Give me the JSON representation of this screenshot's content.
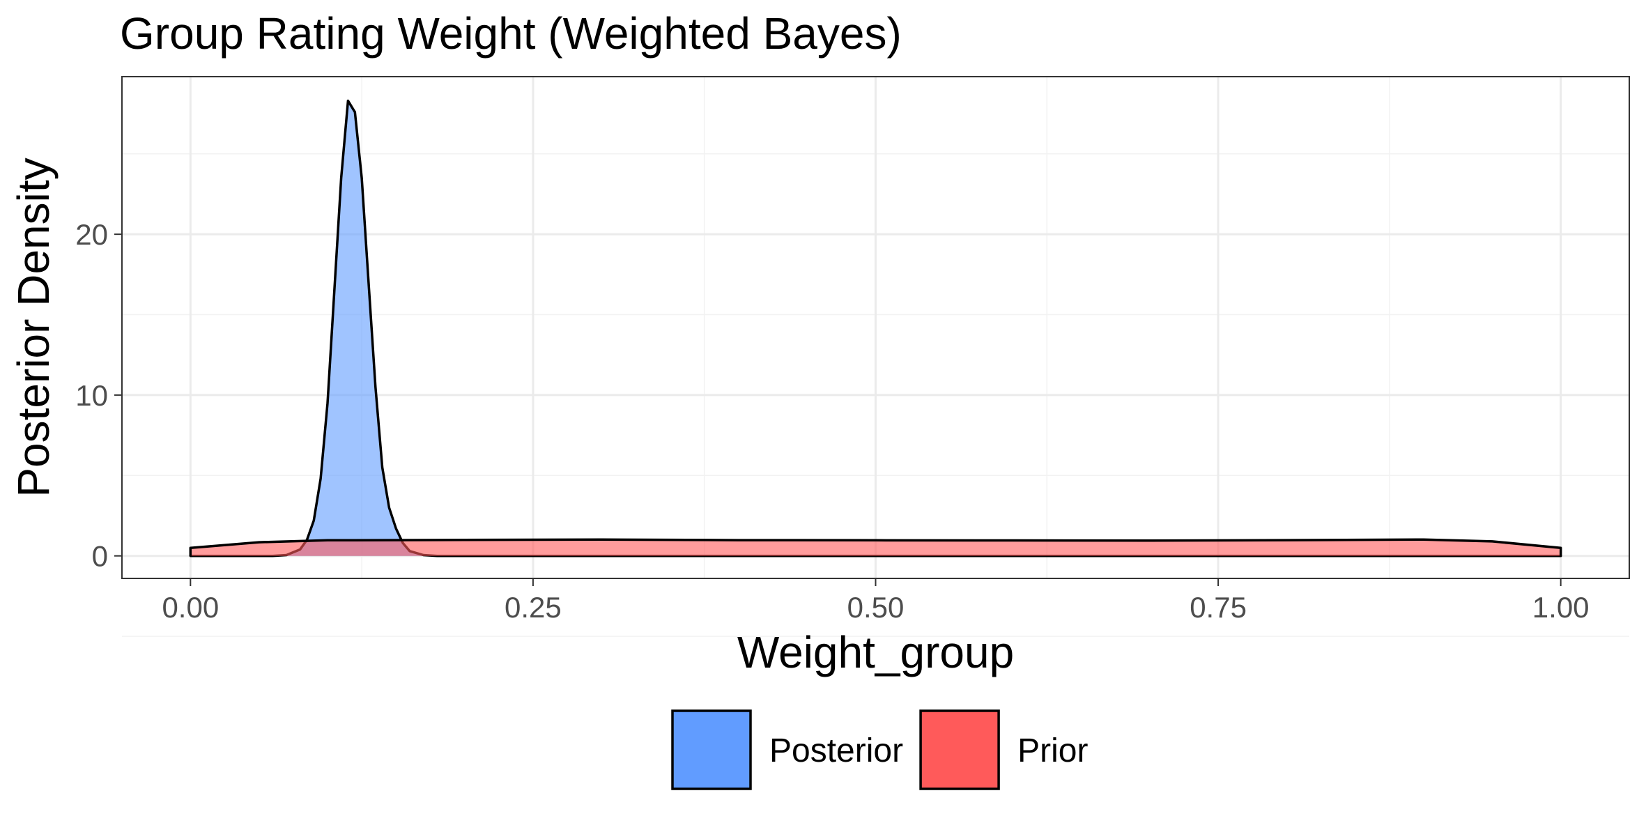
{
  "chart_data": {
    "type": "area",
    "title": "Group Rating Weight (Weighted Bayes)",
    "xlabel": "Weight_group",
    "ylabel": "Posterior Density",
    "xlim": [
      -0.05,
      1.05
    ],
    "ylim": [
      -1.4,
      29.8
    ],
    "x_ticks": [
      "0.00",
      "0.25",
      "0.50",
      "0.75",
      "1.00"
    ],
    "y_ticks": [
      "0",
      "10",
      "20"
    ],
    "grid": true,
    "legend_position": "bottom",
    "series": [
      {
        "name": "Posterior",
        "color": "#619CFF",
        "x": [
          0.0,
          0.06,
          0.07,
          0.08,
          0.085,
          0.09,
          0.095,
          0.1,
          0.105,
          0.11,
          0.115,
          0.12,
          0.125,
          0.13,
          0.135,
          0.14,
          0.145,
          0.15,
          0.155,
          0.16,
          0.17,
          0.18,
          1.0
        ],
        "values": [
          0,
          0,
          0.05,
          0.4,
          1.0,
          2.2,
          4.8,
          9.5,
          16.5,
          23.5,
          28.3,
          27.6,
          23.5,
          17.0,
          10.5,
          5.5,
          3.0,
          1.7,
          0.8,
          0.3,
          0.05,
          0,
          0
        ]
      },
      {
        "name": "Prior",
        "color": "#FF5A5A",
        "x": [
          0.0,
          0.05,
          0.1,
          0.2,
          0.3,
          0.4,
          0.5,
          0.6,
          0.7,
          0.8,
          0.9,
          0.95,
          1.0
        ],
        "values": [
          0.5,
          0.85,
          0.97,
          0.99,
          1.02,
          0.98,
          0.97,
          0.96,
          0.95,
          0.98,
          1.02,
          0.9,
          0.5
        ]
      }
    ]
  }
}
